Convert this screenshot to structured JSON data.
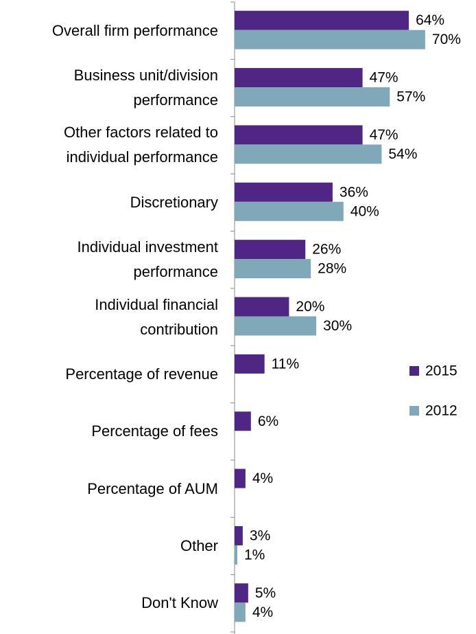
{
  "chart_data": {
    "type": "bar",
    "orientation": "horizontal",
    "categories": [
      "Overall firm performance",
      "Business unit/division\nperformance",
      "Other factors related to\nindividual performance",
      "Discretionary",
      "Individual investment\nperformance",
      "Individual financial\ncontribution",
      "Percentage of revenue",
      "Percentage of fees",
      "Percentage of AUM",
      "Other",
      "Don't Know"
    ],
    "series": [
      {
        "name": "2015",
        "color": "#4f2683",
        "values": [
          64,
          47,
          47,
          36,
          26,
          20,
          11,
          6,
          4,
          3,
          5
        ],
        "value_labels": [
          "64%",
          "47%",
          "47%",
          "36%",
          "26%",
          "20%",
          "11%",
          "6%",
          "4%",
          "3%",
          "5%"
        ]
      },
      {
        "name": "2012",
        "color": "#7fa8b8",
        "values": [
          70,
          57,
          54,
          40,
          28,
          30,
          null,
          null,
          null,
          1,
          4
        ],
        "value_labels": [
          "70%",
          "57%",
          "54%",
          "40%",
          "28%",
          "30%",
          null,
          null,
          null,
          "1%",
          "4%"
        ]
      }
    ],
    "legend": "right"
  }
}
